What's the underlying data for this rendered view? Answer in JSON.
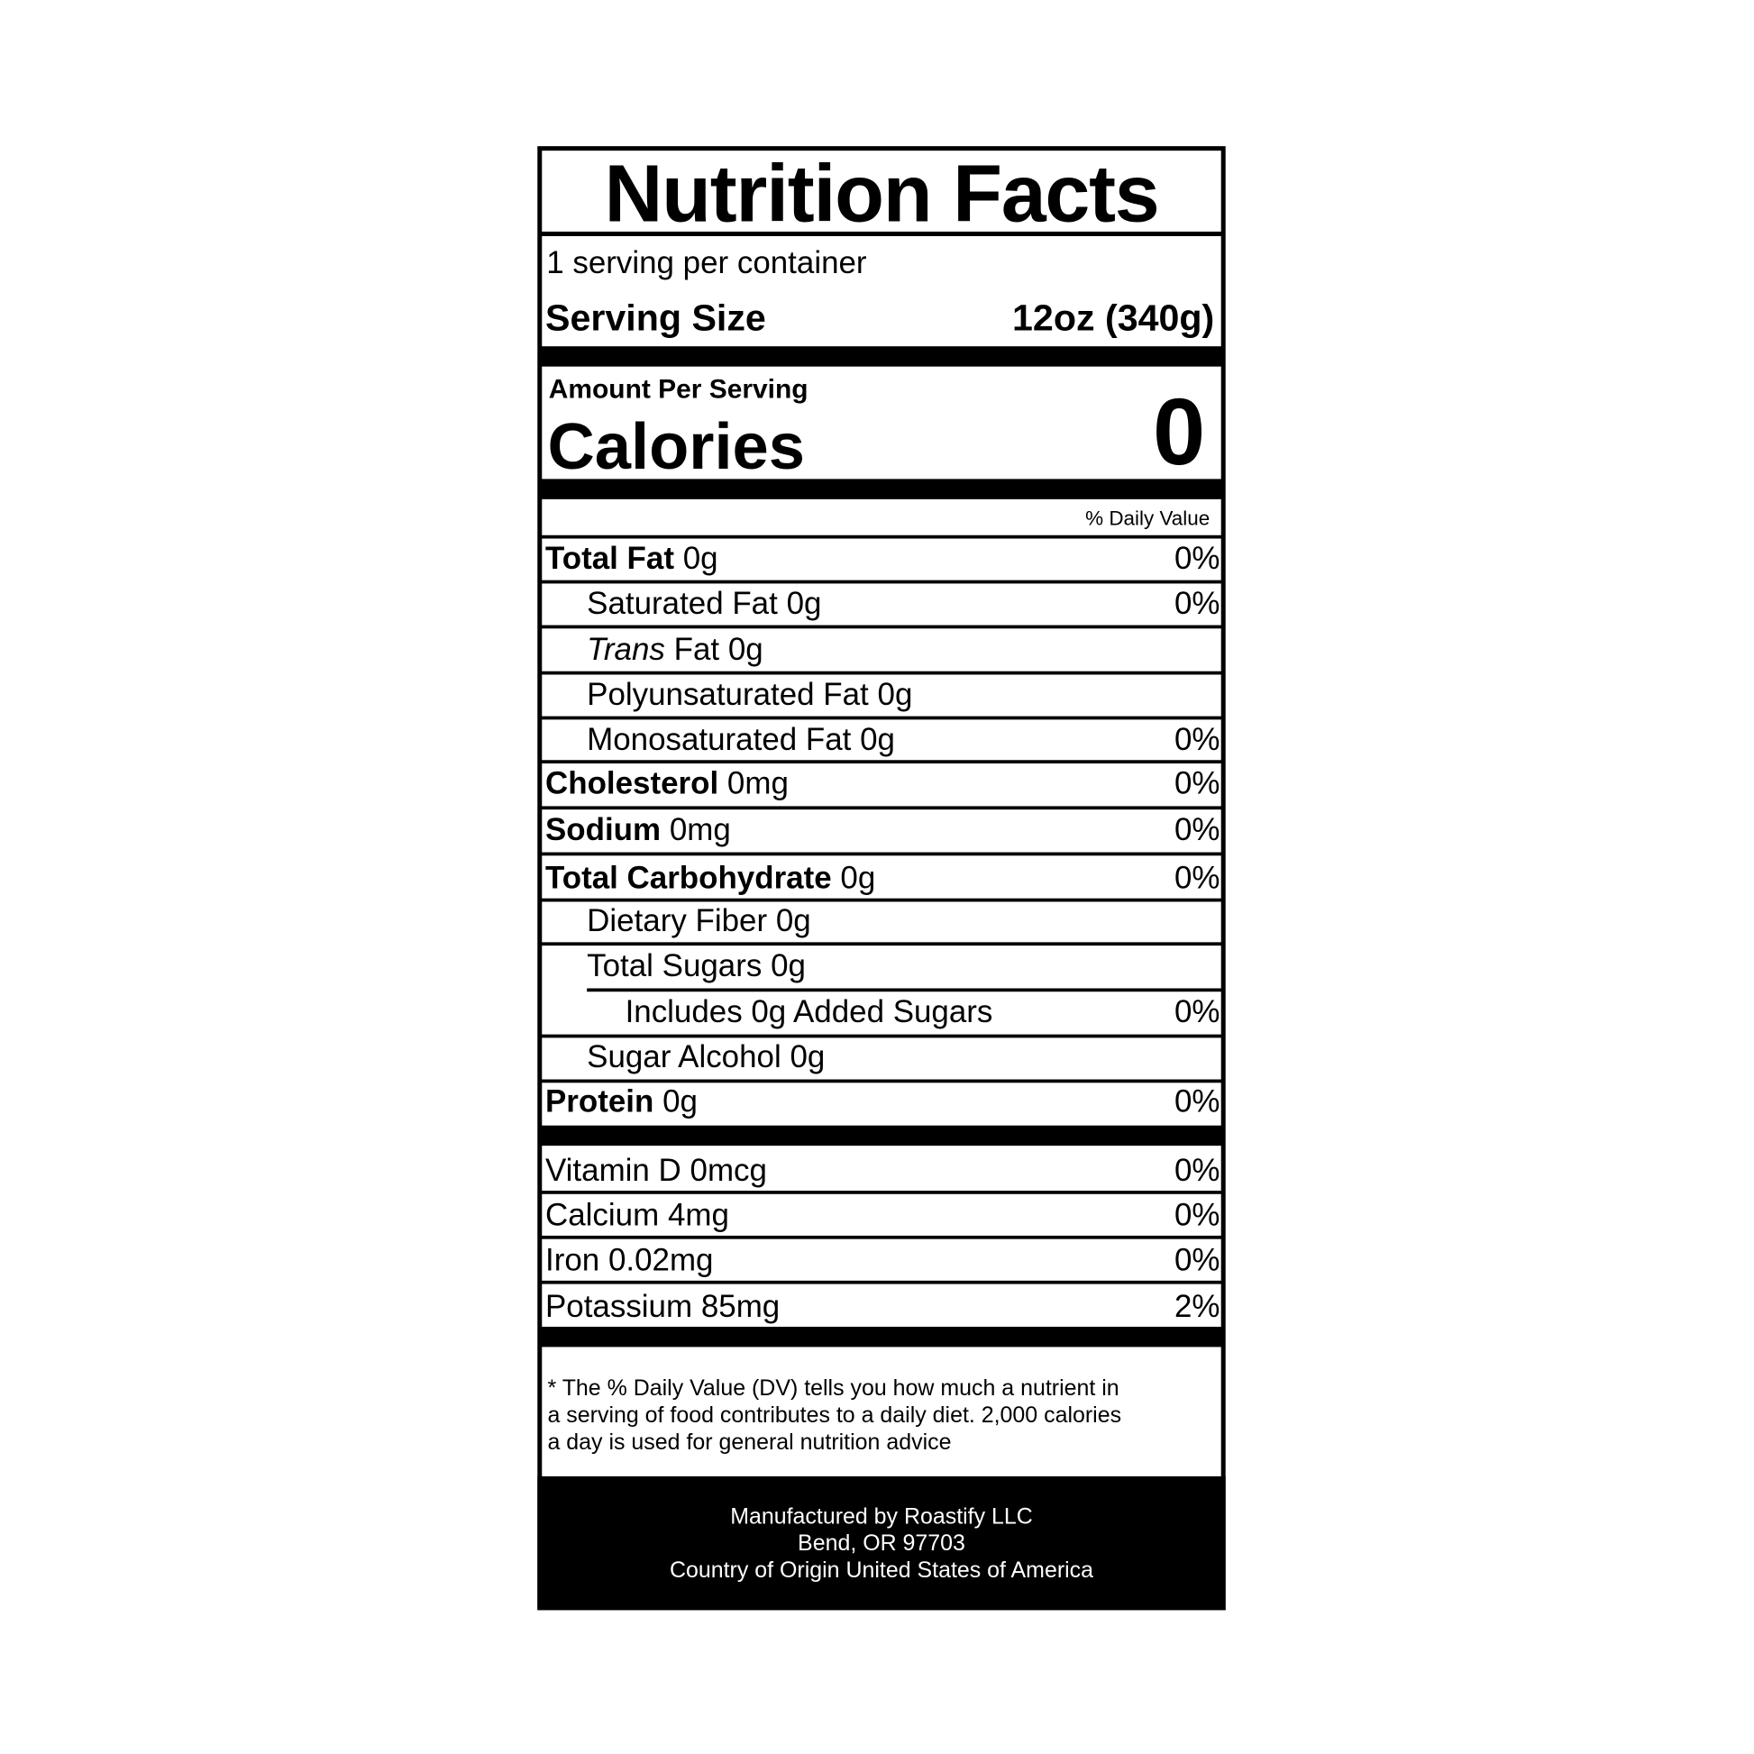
{
  "title": "Nutrition Facts",
  "servings": "1 serving per container",
  "serving_size": {
    "label": "Serving Size",
    "value": "12oz (340g)"
  },
  "calories": {
    "header": "Amount Per Serving",
    "label": "Calories",
    "value": "0"
  },
  "daily_value_header": "% Daily Value",
  "nutrients": [
    {
      "name": "Total Fat",
      "amount": "0g",
      "dv": "0%"
    },
    {
      "name": "Saturated Fat",
      "amount": "0g",
      "dv": "0%"
    },
    {
      "name_italic": "Trans",
      "name": "Fat",
      "amount": "0g"
    },
    {
      "name": "Polyunsaturated Fat",
      "amount": "0g"
    },
    {
      "name": "Monosaturated Fat",
      "amount": "0g",
      "dv": "0%"
    },
    {
      "name": "Cholesterol",
      "amount": "0mg",
      "dv": "0%"
    },
    {
      "name": "Sodium",
      "amount": "0mg",
      "dv": "0%"
    },
    {
      "name": "Total Carbohydrate",
      "amount": "0g",
      "dv": "0%"
    },
    {
      "name": "Dietary Fiber",
      "amount": "0g"
    },
    {
      "name": "Total Sugars",
      "amount": "0g"
    },
    {
      "name": "Includes 0g Added Sugars",
      "dv": "0%"
    },
    {
      "name": "Sugar Alcohol",
      "amount": "0g"
    },
    {
      "name": "Protein",
      "amount": "0g",
      "dv": "0%"
    }
  ],
  "vitamins": [
    {
      "name": "Vitamin D",
      "amount": "0mcg",
      "dv": "0%"
    },
    {
      "name": "Calcium",
      "amount": "4mg",
      "dv": "0%"
    },
    {
      "name": "Iron",
      "amount": "0.02mg",
      "dv": "0%"
    },
    {
      "name": "Potassium",
      "amount": "85mg",
      "dv": "2%"
    }
  ],
  "footnote": [
    "* The % Daily Value (DV) tells you how much a nutrient in",
    "a serving of food contributes to a daily diet. 2,000 calories",
    "a day is used for general nutrition advice"
  ],
  "manufacturer": [
    "Manufactured by Roastify LLC",
    "Bend, OR 97703",
    "Country of Origin United States of America"
  ]
}
